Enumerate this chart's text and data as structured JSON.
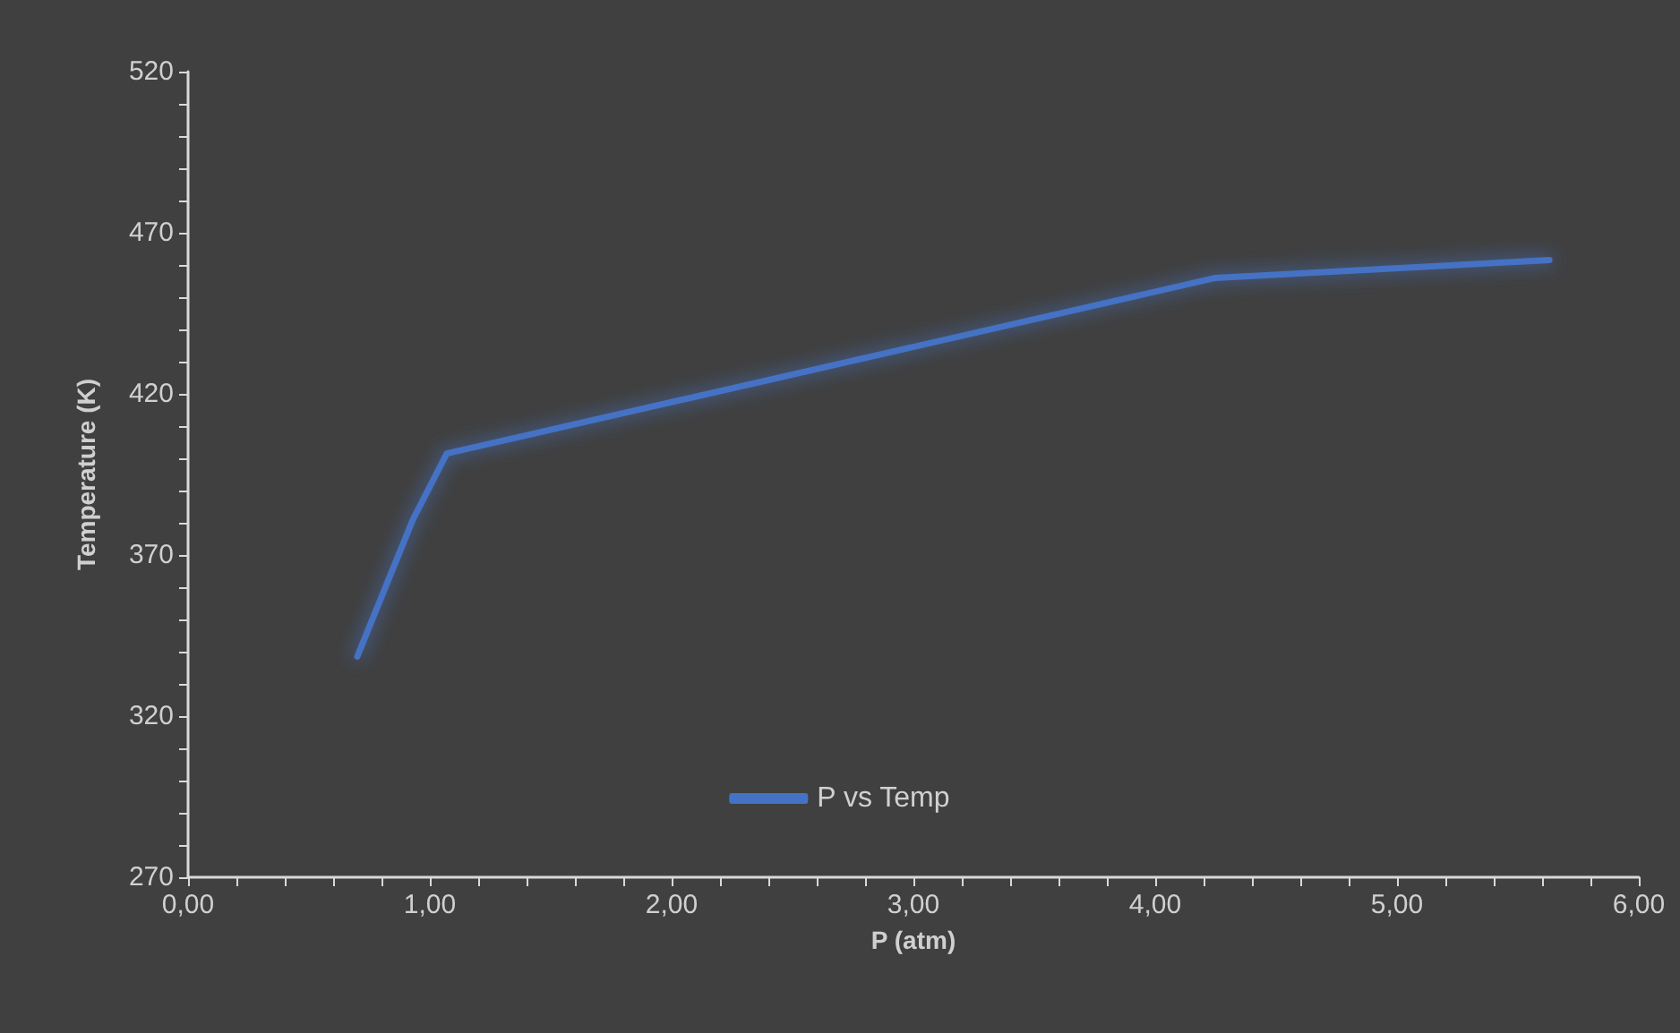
{
  "chart_data": {
    "type": "line",
    "xlabel": "P (atm)",
    "ylabel": "Temperature (K)",
    "series": [
      {
        "name": "P vs Temp",
        "color": "#4472c4",
        "x": [
          0.7,
          0.93,
          1.07,
          4.25,
          5.63
        ],
        "values": [
          338.5,
          381,
          401.5,
          456,
          461.5
        ]
      }
    ],
    "xlim": [
      0,
      6
    ],
    "xticks": [
      {
        "value": 0,
        "label": "0,00"
      },
      {
        "value": 0.2,
        "label": null
      },
      {
        "value": 0.4,
        "label": null
      },
      {
        "value": 0.6,
        "label": null
      },
      {
        "value": 0.8,
        "label": null
      },
      {
        "value": 1,
        "label": "1,00"
      },
      {
        "value": 1.2,
        "label": null
      },
      {
        "value": 1.4,
        "label": null
      },
      {
        "value": 1.6,
        "label": null
      },
      {
        "value": 1.8,
        "label": null
      },
      {
        "value": 2,
        "label": "2,00"
      },
      {
        "value": 2.2,
        "label": null
      },
      {
        "value": 2.4,
        "label": null
      },
      {
        "value": 2.6,
        "label": null
      },
      {
        "value": 2.8,
        "label": null
      },
      {
        "value": 3,
        "label": "3,00"
      },
      {
        "value": 3.2,
        "label": null
      },
      {
        "value": 3.4,
        "label": null
      },
      {
        "value": 3.6,
        "label": null
      },
      {
        "value": 3.8,
        "label": null
      },
      {
        "value": 4,
        "label": "4,00"
      },
      {
        "value": 4.2,
        "label": null
      },
      {
        "value": 4.4,
        "label": null
      },
      {
        "value": 4.6,
        "label": null
      },
      {
        "value": 4.8,
        "label": null
      },
      {
        "value": 5,
        "label": "5,00"
      },
      {
        "value": 5.2,
        "label": null
      },
      {
        "value": 5.4,
        "label": null
      },
      {
        "value": 5.6,
        "label": null
      },
      {
        "value": 5.8,
        "label": null
      },
      {
        "value": 6,
        "label": "6,00"
      }
    ],
    "ylim": [
      270,
      520
    ],
    "yticks": [
      270,
      {
        "value": 280,
        "label": null
      },
      {
        "value": 290,
        "label": null
      },
      {
        "value": 300,
        "label": null
      },
      {
        "value": 310,
        "label": null
      },
      320,
      {
        "value": 330,
        "label": null
      },
      {
        "value": 340,
        "label": null
      },
      {
        "value": 350,
        "label": null
      },
      {
        "value": 360,
        "label": null
      },
      370,
      {
        "value": 380,
        "label": null
      },
      {
        "value": 390,
        "label": null
      },
      {
        "value": 400,
        "label": null
      },
      {
        "value": 410,
        "label": null
      },
      420,
      {
        "value": 430,
        "label": null
      },
      {
        "value": 440,
        "label": null
      },
      {
        "value": 450,
        "label": null
      },
      {
        "value": 460,
        "label": null
      },
      470,
      {
        "value": 480,
        "label": null
      },
      {
        "value": 490,
        "label": null
      },
      {
        "value": 500,
        "label": null
      },
      {
        "value": 510,
        "label": null
      },
      520
    ],
    "grid": false,
    "legend": "bottom",
    "marker": "none",
    "line_style": "solid"
  }
}
